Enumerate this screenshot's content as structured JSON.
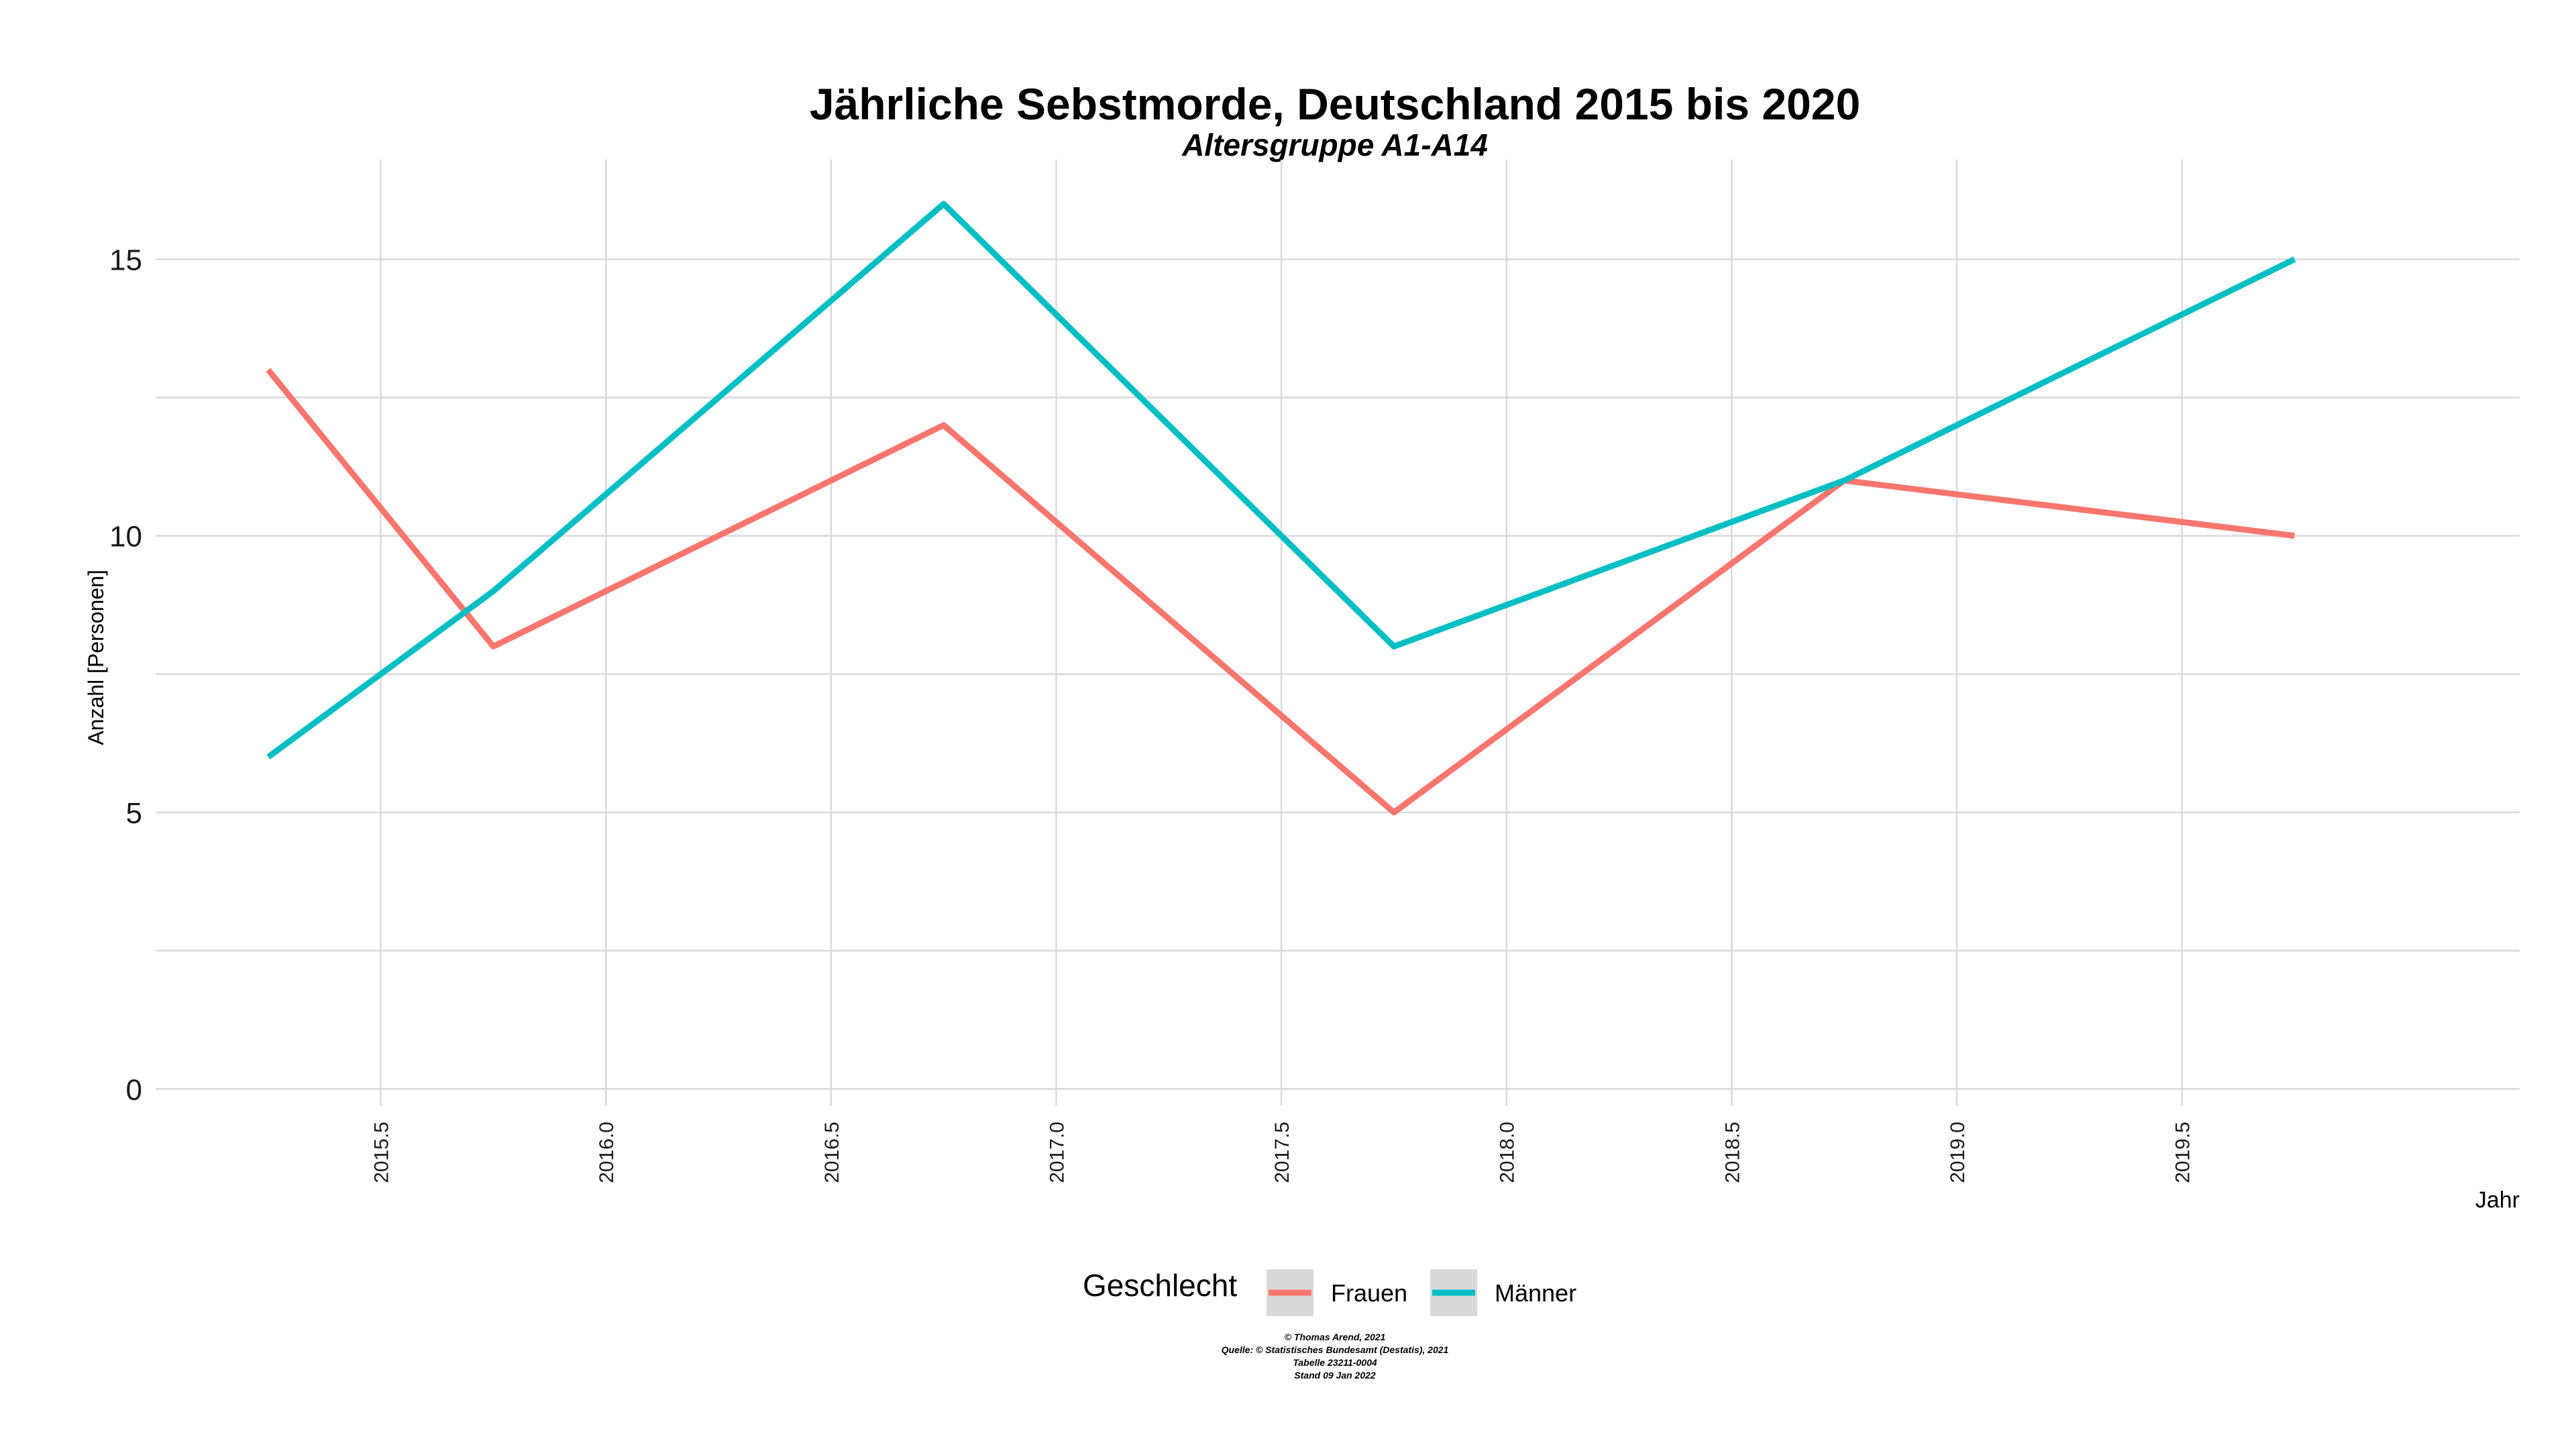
{
  "chart_data": {
    "type": "line",
    "title": "Jährliche Sebstmorde, Deutschland 2015 bis 2020",
    "subtitle": "Altersgruppe A1-A14",
    "xlabel": "Jahr",
    "ylabel": "Anzahl [Personen]",
    "x": [
      2015.25,
      2015.75,
      2016.75,
      2017.75,
      2018.75,
      2019.75
    ],
    "x_ticks": [
      "2015.5",
      "2016.0",
      "2016.5",
      "2017.0",
      "2017.5",
      "2018.0",
      "2018.5",
      "2019.0",
      "2019.5"
    ],
    "y_ticks": [
      "0",
      "5",
      "10",
      "15"
    ],
    "xlim": [
      2015.0,
      2020.25
    ],
    "ylim": [
      -0.3,
      16.8
    ],
    "grid": true,
    "series": [
      {
        "name": "Frauen",
        "color": "#F8766D",
        "values": [
          13,
          8,
          12,
          5,
          11,
          10
        ]
      },
      {
        "name": "Männer",
        "color": "#00BFC4",
        "values": [
          6,
          9,
          16,
          8,
          11,
          15
        ]
      }
    ],
    "legend": {
      "title": "Geschlecht",
      "position": "bottom",
      "key_background": "#d9d9d9"
    },
    "caption": [
      "© Thomas Arend, 2021",
      "Quelle: © Statistisches Bundesamt (Destatis), 2021",
      "Tabelle 23211-0004",
      "Stand 09 Jan 2022"
    ]
  }
}
